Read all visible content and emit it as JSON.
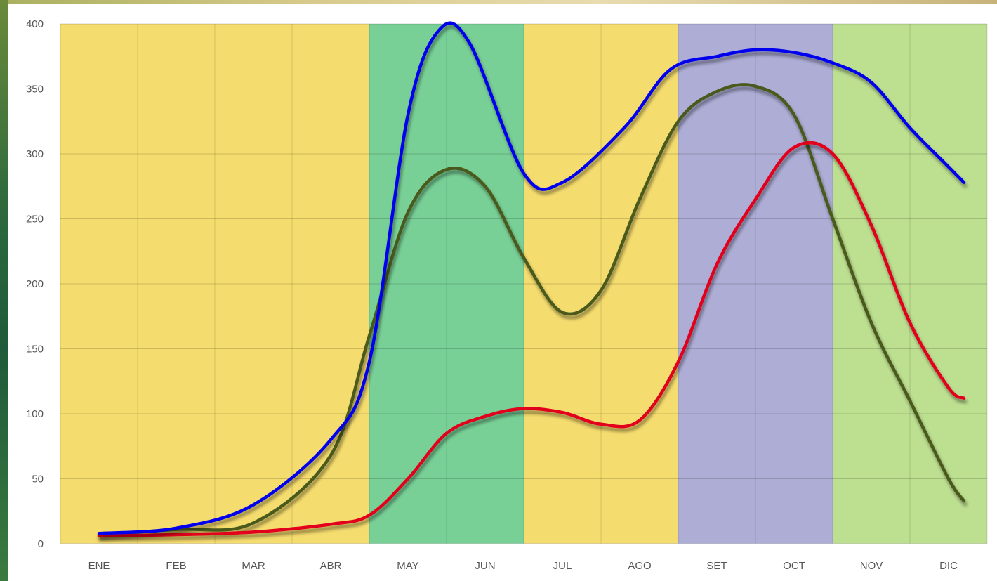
{
  "chart_data": {
    "type": "line",
    "title": "",
    "xlabel": "",
    "ylabel": "",
    "categories": [
      "ENE",
      "FEB",
      "MAR",
      "ABR",
      "MAY",
      "JUN",
      "JUL",
      "AGO",
      "SET",
      "OCT",
      "NOV",
      "DIC"
    ],
    "ylim": [
      0,
      400
    ],
    "yticks": [
      0,
      50,
      100,
      150,
      200,
      250,
      300,
      350,
      400
    ],
    "grid": true,
    "legend": "none",
    "bands": [
      {
        "from": 0,
        "to": 3,
        "color": "#f5dc6e"
      },
      {
        "from": 4,
        "to": 5,
        "color": "#78d096"
      },
      {
        "from": 6,
        "to": 7,
        "color": "#f5dc6e"
      },
      {
        "from": 8,
        "to": 9,
        "color": "#adadd6"
      },
      {
        "from": 10,
        "to": 11,
        "color": "#bddf90"
      }
    ],
    "series": [
      {
        "color": "#0000ee",
        "x": [
          0,
          1,
          2,
          3,
          3.5,
          4,
          4.4,
          4.8,
          5.5,
          6,
          6.8,
          7.4,
          8,
          8.5,
          9,
          9.5,
          10,
          10.5,
          11,
          11.2
        ],
        "values": [
          8,
          12,
          30,
          80,
          140,
          330,
          395,
          385,
          285,
          278,
          320,
          365,
          375,
          380,
          378,
          370,
          355,
          320,
          290,
          278
        ]
      },
      {
        "color": "#e2001a",
        "x": [
          0,
          1,
          2,
          3,
          3.5,
          4,
          4.5,
          5,
          5.5,
          6,
          6.5,
          7,
          7.5,
          8,
          8.5,
          9,
          9.5,
          10,
          10.5,
          11,
          11.2
        ],
        "values": [
          6,
          7,
          9,
          15,
          22,
          50,
          85,
          98,
          104,
          101,
          92,
          95,
          140,
          215,
          265,
          305,
          300,
          245,
          170,
          120,
          112
        ]
      },
      {
        "color": "#4a5a1a",
        "x": [
          0,
          1,
          2,
          3,
          3.5,
          4,
          4.5,
          5,
          5.5,
          6,
          6.5,
          7,
          7.5,
          8,
          8.5,
          9,
          9.5,
          10,
          10.5,
          11,
          11.2
        ],
        "values": [
          7,
          11,
          16,
          68,
          160,
          255,
          288,
          275,
          220,
          178,
          195,
          265,
          325,
          348,
          352,
          330,
          250,
          170,
          110,
          50,
          33
        ]
      }
    ]
  }
}
